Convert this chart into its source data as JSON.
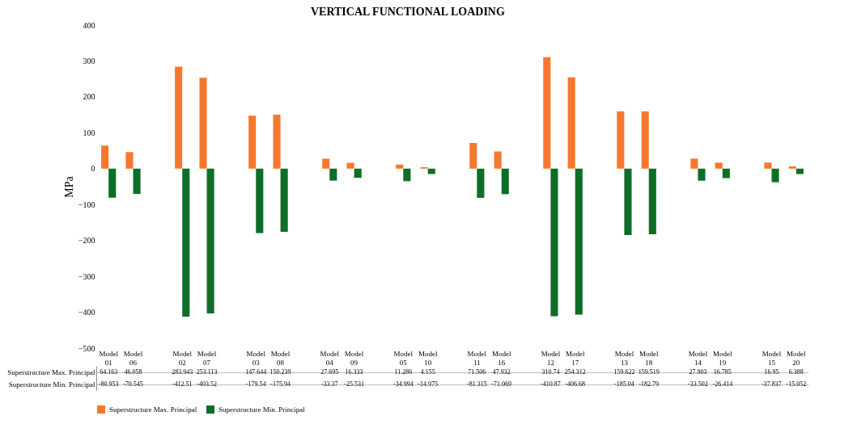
{
  "chart_data": {
    "type": "bar",
    "title": "VERTICAL FUNCTIONAL LOADING",
    "ylabel": "MPa",
    "categories": [
      "Model 01",
      "Model 06",
      null,
      "Model 02",
      "Model 07",
      null,
      "Model 03",
      "Model 08",
      null,
      "Model 04",
      "Model 09",
      null,
      "Model 05",
      "Model 10",
      null,
      "Model 11",
      "Model 16",
      null,
      "Model 12",
      "Model 17",
      null,
      "Model 13",
      "Model 18",
      null,
      "Model 14",
      "Model 19",
      null,
      "Model 15",
      "Model 20"
    ],
    "series": [
      {
        "name": "Superstructure Max. Principal",
        "color": "#f6782f",
        "values": [
          64.163,
          46.058,
          null,
          283.943,
          253.113,
          null,
          147.644,
          150.239,
          null,
          27.695,
          16.333,
          null,
          11.286,
          4.155,
          null,
          71.506,
          47.932,
          null,
          310.74,
          254.312,
          null,
          159.622,
          159.519,
          null,
          27.903,
          16.785,
          null,
          16.95,
          6.388
        ]
      },
      {
        "name": "Superstructure Min. Principal",
        "color": "#0e6e27",
        "values": [
          -80.953,
          -70.545,
          null,
          -412.51,
          -403.52,
          null,
          -179.54,
          -175.94,
          null,
          -33.37,
          -25.531,
          null,
          -34.994,
          -14.975,
          null,
          -81.315,
          -71.069,
          null,
          -410.87,
          -406.68,
          null,
          -185.04,
          -182.79,
          null,
          -33.502,
          -26.414,
          null,
          -37.837,
          -15.052
        ]
      }
    ],
    "ylim": [
      -500,
      400
    ],
    "yticks": [
      -500,
      -400,
      -300,
      -200,
      -100,
      0,
      100,
      200,
      300,
      400
    ],
    "grid": false,
    "legend": "bottom",
    "data_labels": true
  }
}
